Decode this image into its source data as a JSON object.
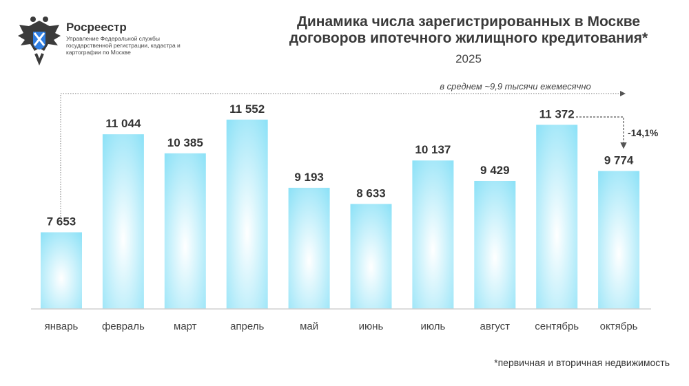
{
  "logo": {
    "name": "Росреестр",
    "subtitle": "Управление Федеральной службы государственной регистрации, кадастра и картографии по Москве"
  },
  "header": {
    "title_line1": "Динамика числа зарегистрированных в Москве",
    "title_line2": "договоров ипотечного жилищного кредитования*",
    "year": "2025"
  },
  "footnote": "*первичная и вторичная недвижимость",
  "colors": {
    "bar_edge": "#8fe2f7",
    "bar_center": "#ffffff",
    "text": "#333333"
  },
  "chart_data": {
    "type": "bar",
    "title": "Динамика числа зарегистрированных в Москве договоров ипотечного жилищного кредитования*",
    "subtitle": "2025",
    "categories": [
      "январь",
      "февраль",
      "март",
      "апрель",
      "май",
      "июнь",
      "июль",
      "август",
      "сентябрь",
      "октябрь"
    ],
    "values": [
      7653,
      11044,
      10385,
      11552,
      9193,
      8633,
      10137,
      9429,
      11372,
      9774
    ],
    "value_labels": [
      "7 653",
      "11 044",
      "10 385",
      "11 552",
      "9 193",
      "8 633",
      "10 137",
      "9 429",
      "11 372",
      "9 774"
    ],
    "ylim": [
      5000,
      12000
    ],
    "grid": false,
    "annotations": {
      "average": "в среднем ~9,9 тысячи ежемесячно",
      "change": "-14,1%"
    }
  }
}
